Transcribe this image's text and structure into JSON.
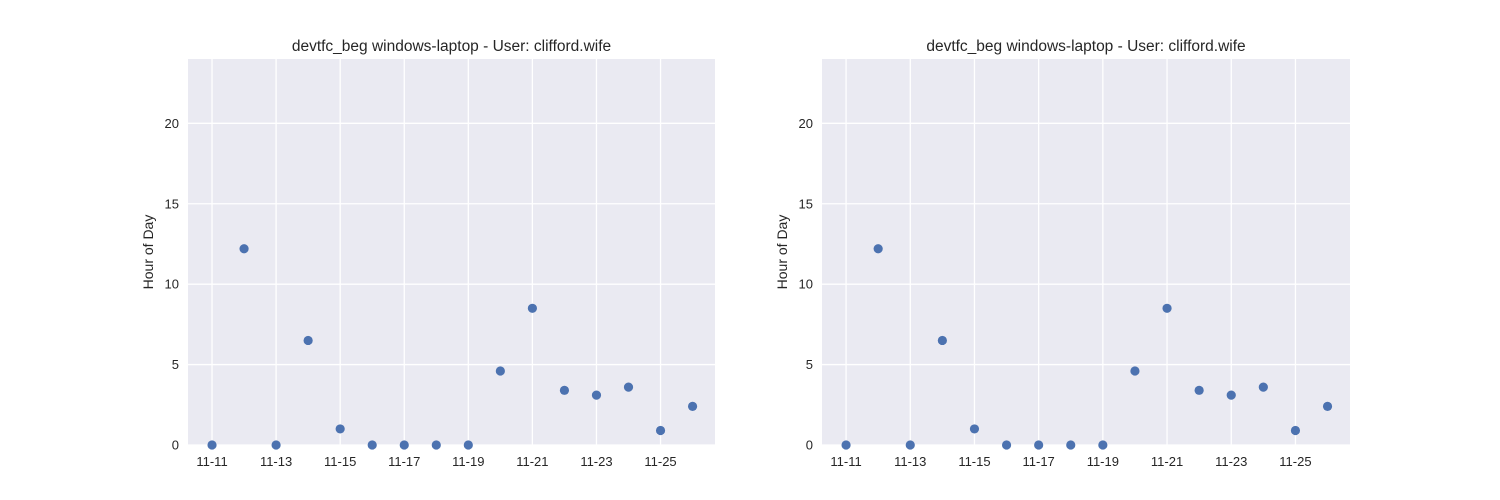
{
  "chart_data": [
    {
      "type": "scatter",
      "title": "devtfc_beg windows-laptop - User: clifford.wife",
      "xlabel": "",
      "ylabel": "Hour of Day",
      "x_type": "date",
      "x_tick_labels": [
        "11-11",
        "11-13",
        "11-15",
        "11-17",
        "11-19",
        "11-21",
        "11-23",
        "11-25"
      ],
      "xlim": [
        "11-10.25",
        "11-26.7"
      ],
      "ylim": [
        0,
        24
      ],
      "y_ticks": [
        0,
        5,
        10,
        15,
        20
      ],
      "grid": true,
      "series": [
        {
          "color": "#4c72b0",
          "points": [
            {
              "x": "11-11",
              "y": 0
            },
            {
              "x": "11-12",
              "y": 12.2
            },
            {
              "x": "11-13",
              "y": 0
            },
            {
              "x": "11-14",
              "y": 6.5
            },
            {
              "x": "11-15",
              "y": 1.0
            },
            {
              "x": "11-16",
              "y": 0
            },
            {
              "x": "11-17",
              "y": 0
            },
            {
              "x": "11-18",
              "y": 0
            },
            {
              "x": "11-19",
              "y": 0
            },
            {
              "x": "11-20",
              "y": 4.6
            },
            {
              "x": "11-21",
              "y": 8.5
            },
            {
              "x": "11-22",
              "y": 3.4
            },
            {
              "x": "11-23",
              "y": 3.1
            },
            {
              "x": "11-24",
              "y": 3.6
            },
            {
              "x": "11-25",
              "y": 0.9
            },
            {
              "x": "11-26",
              "y": 2.4
            }
          ]
        }
      ]
    },
    {
      "type": "scatter",
      "title": "devtfc_beg windows-laptop - User: clifford.wife",
      "xlabel": "",
      "ylabel": "Hour of Day",
      "x_type": "date",
      "x_tick_labels": [
        "11-11",
        "11-13",
        "11-15",
        "11-17",
        "11-19",
        "11-21",
        "11-23",
        "11-25"
      ],
      "xlim": [
        "11-10.25",
        "11-26.7"
      ],
      "ylim": [
        0,
        24
      ],
      "y_ticks": [
        0,
        5,
        10,
        15,
        20
      ],
      "grid": true,
      "series": [
        {
          "color": "#4c72b0",
          "points": [
            {
              "x": "11-11",
              "y": 0
            },
            {
              "x": "11-12",
              "y": 12.2
            },
            {
              "x": "11-13",
              "y": 0
            },
            {
              "x": "11-14",
              "y": 6.5
            },
            {
              "x": "11-15",
              "y": 1.0
            },
            {
              "x": "11-16",
              "y": 0
            },
            {
              "x": "11-17",
              "y": 0
            },
            {
              "x": "11-18",
              "y": 0
            },
            {
              "x": "11-19",
              "y": 0
            },
            {
              "x": "11-20",
              "y": 4.6
            },
            {
              "x": "11-21",
              "y": 8.5
            },
            {
              "x": "11-22",
              "y": 3.4
            },
            {
              "x": "11-23",
              "y": 3.1
            },
            {
              "x": "11-24",
              "y": 3.6
            },
            {
              "x": "11-25",
              "y": 0.9
            },
            {
              "x": "11-26",
              "y": 2.4
            }
          ]
        }
      ]
    }
  ]
}
